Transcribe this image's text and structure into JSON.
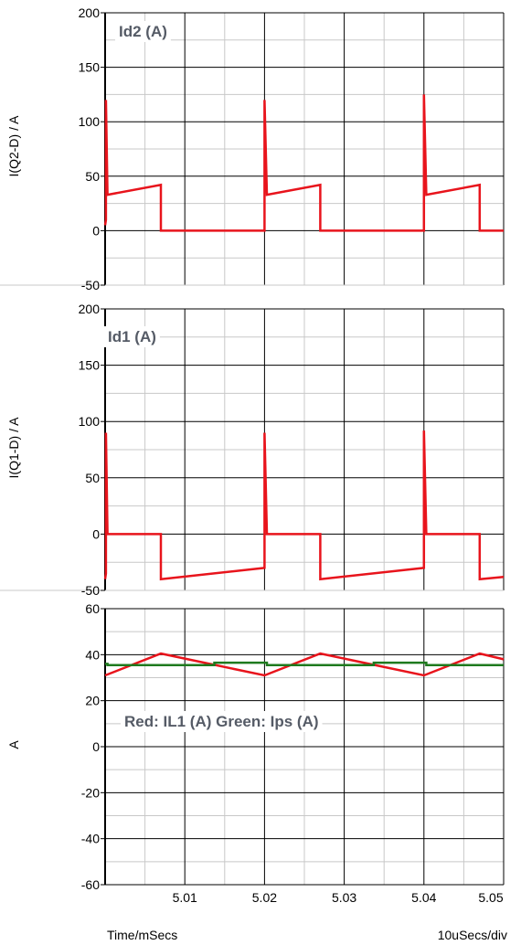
{
  "colors": {
    "red": "#e8141c",
    "green": "#1e7a1e",
    "grid": "#c8c8c8",
    "gridMajor": "#000000",
    "annotation": "#555b66"
  },
  "chart_data": [
    {
      "type": "line",
      "ylabel": "I(Q2-D) / A",
      "annotation": "Id2 (A)",
      "ylim": [
        -50,
        200
      ],
      "yticks": [
        -50,
        0,
        50,
        100,
        150,
        200
      ],
      "xlim": [
        5.0,
        5.05
      ],
      "series": [
        {
          "color": "red",
          "x": [
            5.0,
            5.0001,
            5.0001,
            5.0003,
            5.0003,
            5.007,
            5.007,
            5.02,
            5.02,
            5.0203,
            5.0203,
            5.027,
            5.027,
            5.04,
            5.04,
            5.0403,
            5.0403,
            5.047,
            5.047,
            5.05
          ],
          "y": [
            5,
            10,
            120,
            33,
            33,
            42,
            0,
            0,
            120,
            33,
            33,
            42,
            0,
            0,
            125,
            33,
            33,
            42,
            0,
            0
          ]
        }
      ]
    },
    {
      "type": "line",
      "ylabel": "I(Q1-D) / A",
      "annotation": "Id1 (A)",
      "ylim": [
        -50,
        200
      ],
      "yticks": [
        -50,
        0,
        50,
        100,
        150,
        200
      ],
      "xlim": [
        5.0,
        5.05
      ],
      "series": [
        {
          "color": "red",
          "x": [
            5.0,
            5.0001,
            5.0001,
            5.0003,
            5.0003,
            5.007,
            5.007,
            5.02,
            5.02,
            5.0203,
            5.0203,
            5.027,
            5.027,
            5.04,
            5.04,
            5.0403,
            5.0403,
            5.047,
            5.047,
            5.05
          ],
          "y": [
            -40,
            -35,
            90,
            0,
            0,
            0,
            -40,
            -30,
            90,
            0,
            0,
            0,
            -40,
            -30,
            92,
            0,
            0,
            0,
            -40,
            -38
          ]
        }
      ]
    },
    {
      "type": "line",
      "ylabel": "A",
      "annotation": "Red: IL1 (A)          Green: Ips (A)",
      "ylim": [
        -60,
        60
      ],
      "yticks": [
        -60,
        -40,
        -20,
        0,
        20,
        40,
        60
      ],
      "xlim": [
        5.0,
        5.05
      ],
      "xticks": [
        5.01,
        5.02,
        5.03,
        5.04,
        5.05
      ],
      "xlabel": "Time/mSecs",
      "xscale": "10uSecs/div",
      "series": [
        {
          "color": "red",
          "x": [
            5.0,
            5.007,
            5.02,
            5.027,
            5.04,
            5.047,
            5.05
          ],
          "y": [
            31,
            40.5,
            31,
            40.5,
            31,
            40.5,
            38
          ]
        },
        {
          "color": "green",
          "x": [
            5.0,
            5.0003,
            5.0003,
            5.0137,
            5.0137,
            5.0203,
            5.0203,
            5.0337,
            5.0337,
            5.0403,
            5.0403,
            5.05
          ],
          "y": [
            36,
            36,
            35.5,
            35.5,
            36.5,
            36.5,
            35.5,
            35.5,
            36.5,
            36.5,
            35.5,
            35.5
          ]
        }
      ]
    }
  ]
}
